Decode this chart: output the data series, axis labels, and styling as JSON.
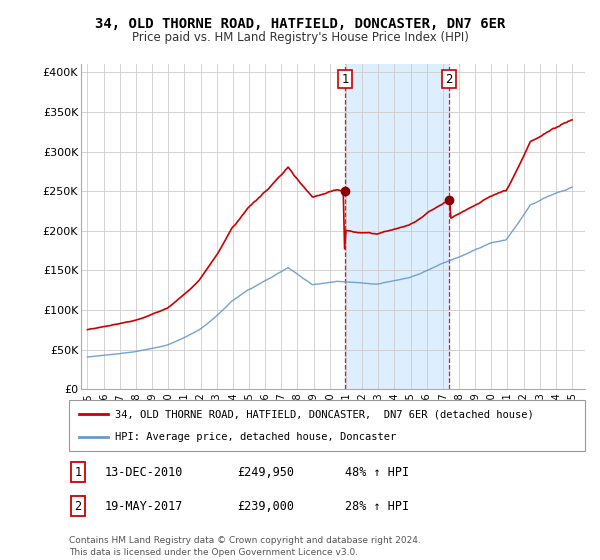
{
  "title": "34, OLD THORNE ROAD, HATFIELD, DONCASTER, DN7 6ER",
  "subtitle": "Price paid vs. HM Land Registry's House Price Index (HPI)",
  "ylabel_ticks": [
    "£0",
    "£50K",
    "£100K",
    "£150K",
    "£200K",
    "£250K",
    "£300K",
    "£350K",
    "£400K"
  ],
  "ylabel_values": [
    0,
    50000,
    100000,
    150000,
    200000,
    250000,
    300000,
    350000,
    400000
  ],
  "ylim": [
    0,
    410000
  ],
  "sale1_year": 2010.95,
  "sale1_price": 249950,
  "sale1_date": "13-DEC-2010",
  "sale1_pct": "48% ↑ HPI",
  "sale2_year": 2017.38,
  "sale2_price": 239000,
  "sale2_date": "19-MAY-2017",
  "sale2_pct": "28% ↑ HPI",
  "legend_line1": "34, OLD THORNE ROAD, HATFIELD, DONCASTER,  DN7 6ER (detached house)",
  "legend_line2": "HPI: Average price, detached house, Doncaster",
  "footer": "Contains HM Land Registry data © Crown copyright and database right 2024.\nThis data is licensed under the Open Government Licence v3.0.",
  "red_color": "#cc0000",
  "blue_color": "#6699cc",
  "shaded_color": "#ddeeff",
  "grid_color": "#cccccc"
}
